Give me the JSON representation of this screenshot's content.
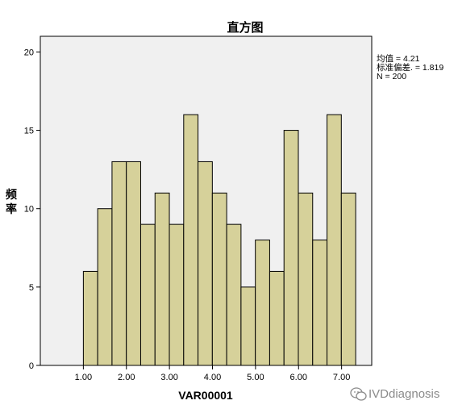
{
  "chart_data": {
    "type": "bar",
    "title": "直方图",
    "xlabel": "VAR00001",
    "ylabel": "频率",
    "x_ticks": [
      "1.00",
      "2.00",
      "3.00",
      "4.00",
      "5.00",
      "6.00",
      "7.00"
    ],
    "x_tick_values": [
      1,
      2,
      3,
      4,
      5,
      6,
      7
    ],
    "y_ticks": [
      "0",
      "5",
      "10",
      "15",
      "20"
    ],
    "y_tick_values": [
      0,
      5,
      10,
      15,
      20
    ],
    "xlim": [
      0.0,
      7.7
    ],
    "ylim": [
      0,
      21
    ],
    "bin_start": 1.0,
    "bin_width": 0.333,
    "values": [
      6,
      10,
      13,
      13,
      9,
      11,
      9,
      16,
      13,
      11,
      9,
      5,
      8,
      6,
      15,
      11,
      8,
      16,
      11
    ],
    "grid": false,
    "legend": "none",
    "bar_color": "#d6d19a",
    "plot_background": "#f0f0f0",
    "stats": [
      "均值 = 4.21",
      "标准偏差. = 1.819",
      "N = 200"
    ]
  },
  "watermark": {
    "icon": "wechat-icon",
    "text": "IVDdiagnosis"
  }
}
